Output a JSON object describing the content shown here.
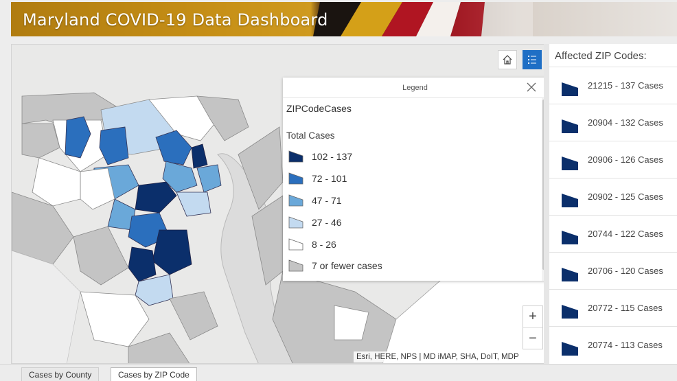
{
  "header": {
    "title": "Maryland COVID-19 Data Dashboard"
  },
  "map": {
    "home_icon": "home-icon",
    "legend_icon": "legend-list-icon",
    "zoom_in": "+",
    "zoom_out": "−",
    "attribution": "Esri, HERE, NPS | MD iMAP, SHA, DoIT, MDP"
  },
  "legend": {
    "title": "Legend",
    "layer": "ZIPCodeCases",
    "field": "Total Cases",
    "classes": [
      {
        "label": "102 - 137",
        "color": "#0b2f6b"
      },
      {
        "label": "72 - 101",
        "color": "#2b6fbd"
      },
      {
        "label": "47 - 71",
        "color": "#6aa8d9"
      },
      {
        "label": "27 - 46",
        "color": "#c3daf0"
      },
      {
        "label": "8 - 26",
        "color": "#ffffff"
      },
      {
        "label": "7 or fewer cases",
        "color": "#c4c4c4"
      }
    ]
  },
  "list": {
    "title": "Affected ZIP Codes:",
    "items": [
      "21215 - 137 Cases",
      "20904 - 132 Cases",
      "20906 - 126 Cases",
      "20902 - 125 Cases",
      "20744 - 122 Cases",
      "20706 - 120 Cases",
      "20772 - 115 Cases",
      "20774 - 113 Cases"
    ],
    "marker_color": "#0b2f6b"
  },
  "tabs": [
    {
      "label": "Cases by County",
      "active": false
    },
    {
      "label": "Cases by ZIP Code",
      "active": true
    }
  ]
}
